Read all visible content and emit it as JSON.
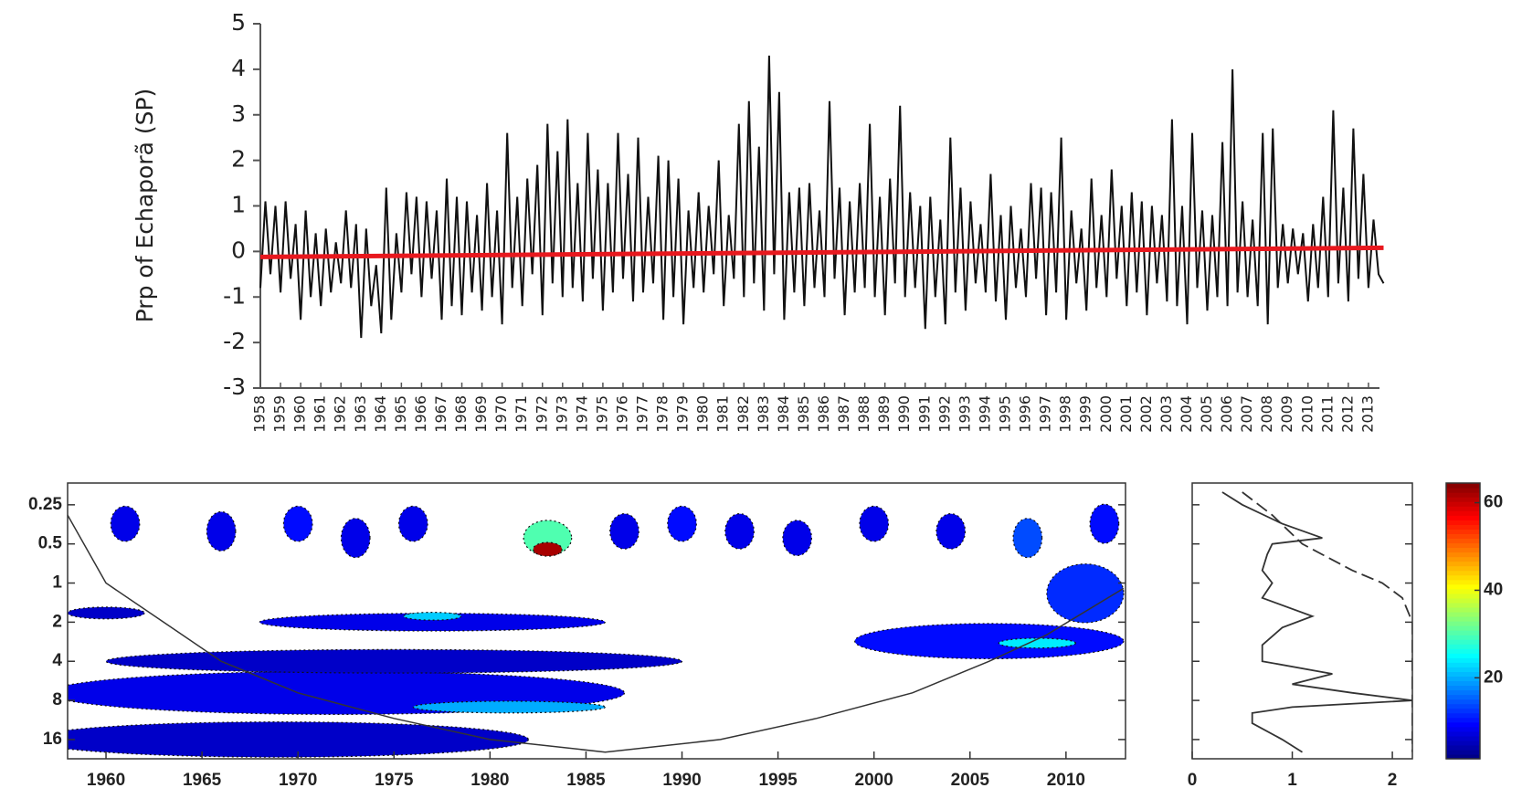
{
  "chart_data": [
    {
      "type": "line",
      "ylabel": "Prp of Echaporã (SP)",
      "xlim": [
        1958,
        2014
      ],
      "ylim": [
        -3,
        5
      ],
      "yticks": [
        -3,
        -2,
        -1,
        0,
        1,
        2,
        3,
        4,
        5
      ],
      "xticks": [
        1958,
        1959,
        1960,
        1961,
        1962,
        1963,
        1964,
        1965,
        1966,
        1967,
        1968,
        1969,
        1970,
        1971,
        1972,
        1973,
        1974,
        1975,
        1976,
        1977,
        1978,
        1979,
        1980,
        1981,
        1982,
        1983,
        1984,
        1985,
        1986,
        1987,
        1988,
        1989,
        1990,
        1991,
        1992,
        1993,
        1994,
        1995,
        1996,
        1997,
        1998,
        1999,
        2000,
        2001,
        2002,
        2003,
        2004,
        2005,
        2006,
        2007,
        2008,
        2009,
        2010,
        2011,
        2012,
        2013
      ],
      "series": [
        {
          "color": "#111111",
          "x": [
            1958,
            1958.25,
            1958.5,
            1958.75,
            1959,
            1959.25,
            1959.5,
            1959.75,
            1960,
            1960.25,
            1960.5,
            1960.75,
            1961,
            1961.25,
            1961.5,
            1961.75,
            1962,
            1962.25,
            1962.5,
            1962.75,
            1963,
            1963.25,
            1963.5,
            1963.75,
            1964,
            1964.25,
            1964.5,
            1964.75,
            1965,
            1965.25,
            1965.5,
            1965.75,
            1966,
            1966.25,
            1966.5,
            1966.75,
            1967,
            1967.25,
            1967.5,
            1967.75,
            1968,
            1968.25,
            1968.5,
            1968.75,
            1969,
            1969.25,
            1969.5,
            1969.75,
            1970,
            1970.25,
            1970.5,
            1970.75,
            1971,
            1971.25,
            1971.5,
            1971.75,
            1972,
            1972.25,
            1972.5,
            1972.75,
            1973,
            1973.25,
            1973.5,
            1973.75,
            1974,
            1974.25,
            1974.5,
            1974.75,
            1975,
            1975.25,
            1975.5,
            1975.75,
            1976,
            1976.25,
            1976.5,
            1976.75,
            1977,
            1977.25,
            1977.5,
            1977.75,
            1978,
            1978.25,
            1978.5,
            1978.75,
            1979,
            1979.25,
            1979.5,
            1979.75,
            1980,
            1980.25,
            1980.5,
            1980.75,
            1981,
            1981.25,
            1981.5,
            1981.75,
            1982,
            1982.25,
            1982.5,
            1982.75,
            1983,
            1983.25,
            1983.5,
            1983.75,
            1984,
            1984.25,
            1984.5,
            1984.75,
            1985,
            1985.25,
            1985.5,
            1985.75,
            1986,
            1986.25,
            1986.5,
            1986.75,
            1987,
            1987.25,
            1987.5,
            1987.75,
            1988,
            1988.25,
            1988.5,
            1988.75,
            1989,
            1989.25,
            1989.5,
            1989.75,
            1990,
            1990.25,
            1990.5,
            1990.75,
            1991,
            1991.25,
            1991.5,
            1991.75,
            1992,
            1992.25,
            1992.5,
            1992.75,
            1993,
            1993.25,
            1993.5,
            1993.75,
            1994,
            1994.25,
            1994.5,
            1994.75,
            1995,
            1995.25,
            1995.5,
            1995.75,
            1996,
            1996.25,
            1996.5,
            1996.75,
            1997,
            1997.25,
            1997.5,
            1997.75,
            1998,
            1998.25,
            1998.5,
            1998.75,
            1999,
            1999.25,
            1999.5,
            1999.75,
            2000,
            2000.25,
            2000.5,
            2000.75,
            2001,
            2001.25,
            2001.5,
            2001.75,
            2002,
            2002.25,
            2002.5,
            2002.75,
            2003,
            2003.25,
            2003.5,
            2003.75,
            2004,
            2004.25,
            2004.5,
            2004.75,
            2005,
            2005.25,
            2005.5,
            2005.75,
            2006,
            2006.25,
            2006.5,
            2006.75,
            2007,
            2007.25,
            2007.5,
            2007.75,
            2008,
            2008.25,
            2008.5,
            2008.75,
            2009,
            2009.25,
            2009.5,
            2009.75,
            2010,
            2010.25,
            2010.5,
            2010.75,
            2011,
            2011.25,
            2011.5,
            2011.75,
            2012,
            2012.25,
            2012.5,
            2012.75,
            2013,
            2013.25,
            2013.5,
            2013.75
          ],
          "values": [
            -0.8,
            1.1,
            -0.5,
            1.0,
            -0.9,
            1.1,
            -0.6,
            0.6,
            -1.5,
            0.9,
            -1.0,
            0.4,
            -1.2,
            0.5,
            -0.9,
            0.2,
            -0.7,
            0.9,
            -0.8,
            0.6,
            -1.9,
            0.5,
            -1.2,
            -0.3,
            -1.8,
            1.4,
            -1.5,
            0.4,
            -0.9,
            1.3,
            -0.5,
            1.2,
            -1.0,
            1.1,
            -0.6,
            0.9,
            -1.5,
            1.6,
            -1.2,
            1.2,
            -1.4,
            1.1,
            -0.9,
            0.8,
            -1.3,
            1.5,
            -1.0,
            0.9,
            -1.6,
            2.6,
            -0.8,
            1.2,
            -1.2,
            1.6,
            -0.5,
            1.9,
            -1.4,
            2.8,
            -0.7,
            2.2,
            -1.0,
            2.9,
            -0.8,
            1.5,
            -1.1,
            2.6,
            -0.6,
            1.8,
            -1.3,
            1.5,
            -0.9,
            2.6,
            -0.6,
            1.7,
            -1.1,
            2.5,
            -0.9,
            1.2,
            -0.7,
            2.1,
            -1.5,
            2.0,
            -1.0,
            1.6,
            -1.6,
            0.9,
            -0.8,
            1.3,
            -0.9,
            1.0,
            -0.5,
            2.0,
            -1.2,
            0.8,
            -0.6,
            2.8,
            -1.0,
            3.3,
            -0.7,
            2.3,
            -1.3,
            4.3,
            -0.5,
            3.5,
            -1.5,
            1.3,
            -0.9,
            1.4,
            -1.2,
            1.5,
            -0.8,
            0.9,
            -1.0,
            3.3,
            -0.6,
            1.4,
            -1.4,
            1.1,
            -0.9,
            1.5,
            -0.8,
            2.8,
            -1.0,
            1.2,
            -1.4,
            1.6,
            -0.7,
            3.2,
            -1.0,
            1.3,
            -0.8,
            1.0,
            -1.7,
            1.2,
            -1.0,
            0.7,
            -1.6,
            2.5,
            -0.9,
            1.4,
            -1.3,
            1.1,
            -0.7,
            0.6,
            -0.9,
            1.7,
            -1.1,
            0.8,
            -1.5,
            1.0,
            -0.8,
            0.5,
            -1.0,
            1.5,
            -0.6,
            1.4,
            -1.4,
            1.3,
            -0.9,
            2.5,
            -1.5,
            0.9,
            -0.7,
            0.5,
            -1.3,
            1.6,
            -0.8,
            0.8,
            -1.0,
            1.8,
            -0.6,
            1.0,
            -1.2,
            1.3,
            -0.9,
            1.1,
            -1.4,
            1.0,
            -0.7,
            0.8,
            -1.1,
            2.9,
            -1.2,
            1.0,
            -1.6,
            2.6,
            -0.8,
            0.9,
            -1.3,
            0.8,
            -1.0,
            2.4,
            -1.2,
            4.0,
            -0.9,
            1.1,
            -1.0,
            0.7,
            -1.2,
            2.6,
            -1.6,
            2.7,
            -0.8,
            0.6,
            -0.7,
            0.5,
            -0.5,
            0.4,
            -1.1,
            0.6,
            -0.8,
            1.2,
            -1.0,
            3.1,
            -0.7,
            1.4,
            -1.1,
            2.7,
            -0.6,
            1.7,
            -0.8,
            0.7,
            -0.5,
            -0.7
          ]
        },
        {
          "color": "#e8181e",
          "x": [
            1958,
            2013.75
          ],
          "values": [
            -0.12,
            0.08
          ]
        }
      ]
    },
    {
      "type": "contour",
      "xlim": [
        1958,
        2013.1
      ],
      "ylim": [
        0.17,
        22.5
      ],
      "log_y": true,
      "reverse_y": true,
      "xticks": [
        1960,
        1965,
        1970,
        1975,
        1980,
        1985,
        1990,
        1995,
        2000,
        2005,
        2010
      ],
      "yticks": [
        0.25,
        0.5,
        1,
        2,
        4,
        8,
        16
      ],
      "contours": [
        {
          "x": 1969,
          "period": 16,
          "width": 26,
          "height": 0.9,
          "value": 6
        },
        {
          "x": 1972,
          "period": 7,
          "width": 30,
          "height": 1.1,
          "value": 8
        },
        {
          "x": 1975,
          "period": 4,
          "width": 30,
          "height": 0.6,
          "value": 6
        },
        {
          "x": 1977,
          "period": 2,
          "width": 18,
          "height": 0.45,
          "value": 8
        },
        {
          "x": 1981,
          "period": 9,
          "width": 10,
          "height": 0.3,
          "value": 20
        },
        {
          "x": 1977,
          "period": 1.8,
          "width": 3,
          "height": 0.2,
          "value": 22
        },
        {
          "x": 1960,
          "period": 1.7,
          "width": 4,
          "height": 0.3,
          "value": 6
        },
        {
          "x": 2006,
          "period": 2.8,
          "width": 14,
          "height": 0.9,
          "value": 10
        },
        {
          "x": 2008.5,
          "period": 2.9,
          "width": 4,
          "height": 0.25,
          "value": 24
        },
        {
          "x": 2011,
          "period": 1.2,
          "width": 4,
          "height": 1.5,
          "value": 12
        },
        {
          "x": 1961,
          "period": 0.35,
          "width": 1.5,
          "height": 0.9,
          "value": 8
        },
        {
          "x": 1966,
          "period": 0.4,
          "width": 1.5,
          "height": 1.0,
          "value": 8
        },
        {
          "x": 1970,
          "period": 0.35,
          "width": 1.5,
          "height": 0.9,
          "value": 10
        },
        {
          "x": 1973,
          "period": 0.45,
          "width": 1.5,
          "height": 1.0,
          "value": 8
        },
        {
          "x": 1976,
          "period": 0.35,
          "width": 1.5,
          "height": 0.9,
          "value": 8
        },
        {
          "x": 1983,
          "period": 0.45,
          "width": 2.5,
          "height": 0.9,
          "value": 30
        },
        {
          "x": 1983,
          "period": 0.55,
          "width": 1.5,
          "height": 0.35,
          "value": 62
        },
        {
          "x": 1987,
          "period": 0.4,
          "width": 1.5,
          "height": 0.9,
          "value": 8
        },
        {
          "x": 1990,
          "period": 0.35,
          "width": 1.5,
          "height": 0.9,
          "value": 10
        },
        {
          "x": 1993,
          "period": 0.4,
          "width": 1.5,
          "height": 0.9,
          "value": 8
        },
        {
          "x": 1996,
          "period": 0.45,
          "width": 1.5,
          "height": 0.9,
          "value": 8
        },
        {
          "x": 2000,
          "period": 0.35,
          "width": 1.5,
          "height": 0.9,
          "value": 8
        },
        {
          "x": 2004,
          "period": 0.4,
          "width": 1.5,
          "height": 0.9,
          "value": 8
        },
        {
          "x": 2008,
          "period": 0.45,
          "width": 1.5,
          "height": 1.0,
          "value": 14
        },
        {
          "x": 2012,
          "period": 0.35,
          "width": 1.5,
          "height": 1.0,
          "value": 10
        }
      ],
      "coi": {
        "x": [
          1958,
          1960,
          1963,
          1966,
          1970,
          1975,
          1980,
          1986,
          1992,
          1997,
          2002,
          2006,
          2009,
          2013
        ],
        "period": [
          0.3,
          1,
          2,
          4,
          7,
          11,
          16,
          20,
          16,
          11,
          7,
          4,
          2.5,
          1.1
        ]
      }
    },
    {
      "type": "spectrum",
      "xlim": [
        0,
        2.2
      ],
      "ylim": [
        0.17,
        22.5
      ],
      "xticks": [
        0,
        1,
        2
      ],
      "series": [
        {
          "dash": false,
          "periods": [
            0.2,
            0.25,
            0.35,
            0.45,
            0.5,
            0.6,
            0.8,
            1,
            1.3,
            1.8,
            2.2,
            3,
            4,
            5,
            6,
            7,
            8,
            9,
            10,
            12,
            16,
            20
          ],
          "values": [
            0.3,
            0.5,
            0.9,
            1.3,
            0.8,
            0.75,
            0.7,
            0.8,
            0.7,
            1.2,
            0.9,
            0.7,
            0.7,
            1.4,
            1.0,
            1.6,
            2.2,
            1.0,
            0.6,
            0.6,
            0.9,
            1.1
          ]
        },
        {
          "dash": true,
          "periods": [
            0.2,
            0.3,
            0.5,
            0.8,
            1,
            1.3,
            2,
            4,
            8,
            16,
            20
          ],
          "values": [
            0.5,
            0.8,
            1.1,
            1.6,
            1.9,
            2.1,
            2.2,
            2.2,
            2.2,
            2.2,
            2.2
          ]
        }
      ]
    },
    {
      "type": "colorbar",
      "clim": [
        1.5,
        64.5
      ],
      "cticks": [
        20,
        40,
        60
      ]
    }
  ]
}
